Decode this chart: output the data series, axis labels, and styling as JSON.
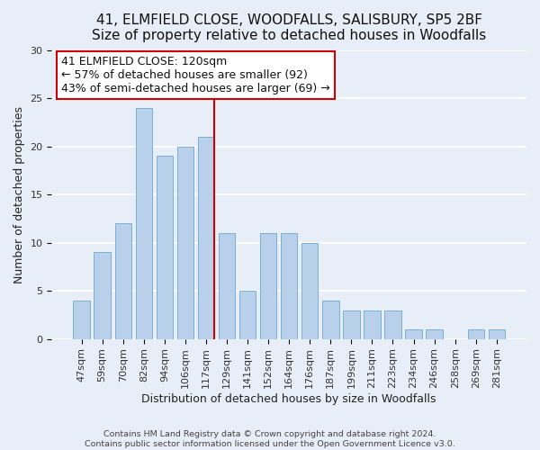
{
  "title": "41, ELMFIELD CLOSE, WOODFALLS, SALISBURY, SP5 2BF",
  "subtitle": "Size of property relative to detached houses in Woodfalls",
  "xlabel": "Distribution of detached houses by size in Woodfalls",
  "ylabel": "Number of detached properties",
  "bar_labels": [
    "47sqm",
    "59sqm",
    "70sqm",
    "82sqm",
    "94sqm",
    "106sqm",
    "117sqm",
    "129sqm",
    "141sqm",
    "152sqm",
    "164sqm",
    "176sqm",
    "187sqm",
    "199sqm",
    "211sqm",
    "223sqm",
    "234sqm",
    "246sqm",
    "258sqm",
    "269sqm",
    "281sqm"
  ],
  "bar_heights": [
    4,
    9,
    12,
    24,
    19,
    20,
    21,
    11,
    5,
    11,
    11,
    10,
    4,
    3,
    3,
    3,
    1,
    1,
    0,
    1,
    1
  ],
  "bar_color": "#b8d0ea",
  "bar_edge_color": "#7aafd4",
  "highlight_index": 6,
  "highlight_line_color": "#cc0000",
  "annotation_line1": "41 ELMFIELD CLOSE: 120sqm",
  "annotation_line2": "← 57% of detached houses are smaller (92)",
  "annotation_line3": "43% of semi-detached houses are larger (69) →",
  "annotation_box_edge_color": "#cc0000",
  "ylim": [
    0,
    30
  ],
  "yticks": [
    0,
    5,
    10,
    15,
    20,
    25,
    30
  ],
  "footer1": "Contains HM Land Registry data © Crown copyright and database right 2024.",
  "footer2": "Contains public sector information licensed under the Open Government Licence v3.0.",
  "bg_color": "#e8eef7",
  "plot_bg_color": "#e8eef7",
  "grid_color": "#ffffff",
  "title_fontsize": 11,
  "xlabel_fontsize": 9,
  "ylabel_fontsize": 9,
  "tick_fontsize": 8,
  "annotation_fontsize": 9,
  "footer_fontsize": 6.8
}
